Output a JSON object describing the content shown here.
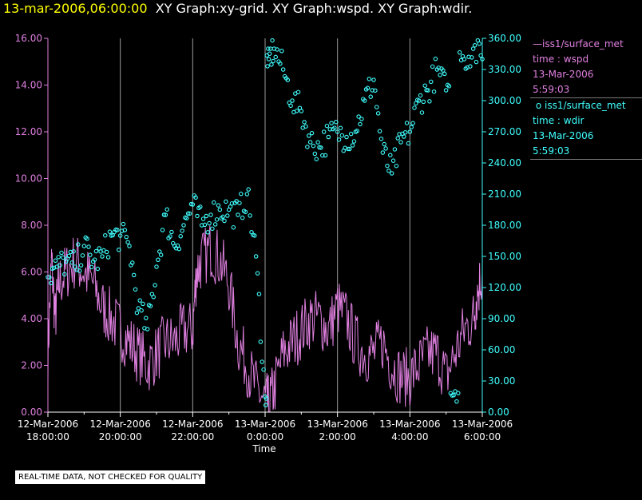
{
  "header": {
    "date": "13-mar-2006,06:00:00",
    "rest": "XY Graph:xy-grid.  XY Graph:wspd.  XY Graph:wdir."
  },
  "legend": [
    {
      "line1": "iss1/surface_met",
      "line2": "time : wspd",
      "line3": "13-Mar-2006",
      "line4": "5:59:03",
      "color": "#e080e0",
      "marker": "line"
    },
    {
      "line1": "iss1/surface_met",
      "line2": "time : wdir",
      "line3": "13-Mar-2006",
      "line4": "5:59:03",
      "color": "#40ffff",
      "marker": "circle"
    }
  ],
  "disclaimer": "REAL-TIME DATA, NOT CHECKED FOR QUALITY",
  "chart_data": {
    "type": "line",
    "xlabel": "Time",
    "x_range_hours": [
      18,
      30
    ],
    "x_ticks": [
      {
        "date": "12-Mar-2006",
        "time": "18:00:00"
      },
      {
        "date": "12-Mar-2006",
        "time": "20:00:00"
      },
      {
        "date": "12-Mar-2006",
        "time": "22:00:00"
      },
      {
        "date": "13-Mar-2006",
        "time": "0:00:00"
      },
      {
        "date": "13-Mar-2006",
        "time": "2:00:00"
      },
      {
        "date": "13-Mar-2006",
        "time": "4:00:00"
      },
      {
        "date": "13-Mar-2006",
        "time": "6:00:00"
      }
    ],
    "y_left": {
      "ticks": [
        "0.00",
        "2.00",
        "4.00",
        "6.00",
        "8.00",
        "10.00",
        "12.00",
        "14.00",
        "16.00"
      ],
      "range": [
        0,
        16
      ],
      "color": "#e080e0"
    },
    "y_right": {
      "ticks": [
        "0.00",
        "30.00",
        "60.00",
        "90.00",
        "120.00",
        "150.00",
        "180.00",
        "210.00",
        "240.00",
        "270.00",
        "300.00",
        "330.00",
        "360.00"
      ],
      "range": [
        0,
        360
      ],
      "color": "#40ffff"
    },
    "grid": "vertical",
    "series": [
      {
        "axis": "left",
        "style": "line",
        "color": "#e080e0",
        "points": [
          [
            18.0,
            2.5
          ],
          [
            18.1,
            6.5
          ],
          [
            18.2,
            4.0
          ],
          [
            18.3,
            5.5
          ],
          [
            18.5,
            6.0
          ],
          [
            18.75,
            6.5
          ],
          [
            19.0,
            6.0
          ],
          [
            19.25,
            5.5
          ],
          [
            19.5,
            4.5
          ],
          [
            19.75,
            4.0
          ],
          [
            20.0,
            3.5
          ],
          [
            20.25,
            3.0
          ],
          [
            20.5,
            2.5
          ],
          [
            20.75,
            2.0
          ],
          [
            21.0,
            2.5
          ],
          [
            21.25,
            3.0
          ],
          [
            21.5,
            3.0
          ],
          [
            21.75,
            3.5
          ],
          [
            22.0,
            3.5
          ],
          [
            22.1,
            6.0
          ],
          [
            22.25,
            6.5
          ],
          [
            22.5,
            7.0
          ],
          [
            22.75,
            6.5
          ],
          [
            23.0,
            5.5
          ],
          [
            23.25,
            3.0
          ],
          [
            23.5,
            2.0
          ],
          [
            23.75,
            1.0
          ],
          [
            24.0,
            0.5
          ],
          [
            24.1,
            0.3
          ],
          [
            24.25,
            1.0
          ],
          [
            24.5,
            2.5
          ],
          [
            24.75,
            3.0
          ],
          [
            25.0,
            3.5
          ],
          [
            25.25,
            4.0
          ],
          [
            25.5,
            4.0
          ],
          [
            25.75,
            3.5
          ],
          [
            26.0,
            4.5
          ],
          [
            26.25,
            4.0
          ],
          [
            26.5,
            3.0
          ],
          [
            26.75,
            2.5
          ],
          [
            27.0,
            2.5
          ],
          [
            27.25,
            3.0
          ],
          [
            27.5,
            2.0
          ],
          [
            27.75,
            1.5
          ],
          [
            28.0,
            1.5
          ],
          [
            28.25,
            2.0
          ],
          [
            28.5,
            2.5
          ],
          [
            28.75,
            2.5
          ],
          [
            29.0,
            1.5
          ],
          [
            29.25,
            2.5
          ],
          [
            29.5,
            3.5
          ],
          [
            29.75,
            4.0
          ],
          [
            29.85,
            5.0
          ],
          [
            30.0,
            6.0
          ]
        ]
      },
      {
        "axis": "right",
        "style": "scatter",
        "color": "#40ffff",
        "points": [
          [
            18.0,
            130
          ],
          [
            18.25,
            140
          ],
          [
            18.5,
            145
          ],
          [
            18.75,
            140
          ],
          [
            19.0,
            160
          ],
          [
            19.25,
            145
          ],
          [
            19.5,
            150
          ],
          [
            19.75,
            170
          ],
          [
            20.0,
            170
          ],
          [
            20.25,
            160
          ],
          [
            20.5,
            100
          ],
          [
            20.75,
            80
          ],
          [
            21.0,
            140
          ],
          [
            21.25,
            190
          ],
          [
            21.5,
            160
          ],
          [
            21.75,
            180
          ],
          [
            22.0,
            200
          ],
          [
            22.25,
            180
          ],
          [
            22.5,
            190
          ],
          [
            22.75,
            195
          ],
          [
            23.0,
            195
          ],
          [
            23.25,
            190
          ],
          [
            23.5,
            210
          ],
          [
            23.75,
            150
          ],
          [
            24.0,
            15
          ],
          [
            24.1,
            340
          ],
          [
            24.25,
            350
          ],
          [
            24.5,
            330
          ],
          [
            24.75,
            300
          ],
          [
            25.0,
            290
          ],
          [
            25.25,
            260
          ],
          [
            25.5,
            255
          ],
          [
            25.75,
            265
          ],
          [
            26.0,
            270
          ],
          [
            26.25,
            265
          ],
          [
            26.5,
            270
          ],
          [
            26.75,
            300
          ],
          [
            27.0,
            320
          ],
          [
            27.25,
            250
          ],
          [
            27.5,
            230
          ],
          [
            27.75,
            260
          ],
          [
            28.0,
            270
          ],
          [
            28.25,
            300
          ],
          [
            28.5,
            310
          ],
          [
            28.75,
            330
          ],
          [
            29.0,
            310
          ],
          [
            29.25,
            20
          ],
          [
            29.5,
            340
          ],
          [
            29.75,
            350
          ],
          [
            30.0,
            340
          ]
        ]
      }
    ]
  }
}
